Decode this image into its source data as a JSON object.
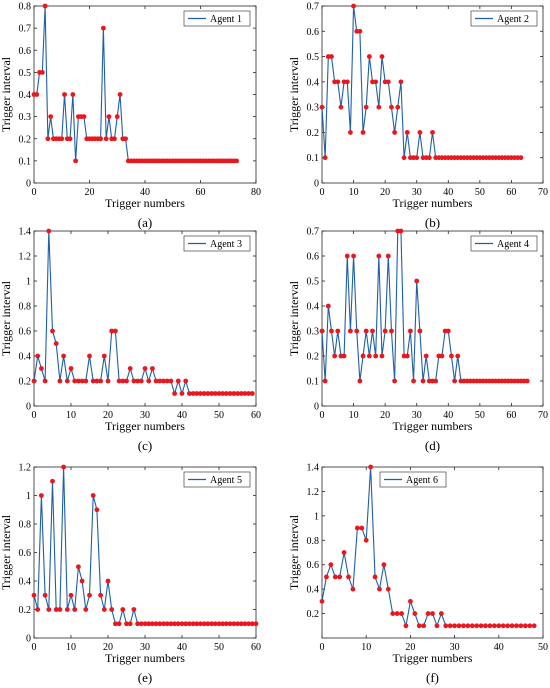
{
  "chart_data": [
    {
      "type": "line",
      "panel_label": "(a)",
      "xlabel": "Trigger numbers",
      "ylabel": "Trigger interval",
      "xlim": [
        0,
        80
      ],
      "ylim": [
        0,
        0.8
      ],
      "xticks": [
        0,
        20,
        40,
        60,
        80
      ],
      "yticks": [
        0,
        0.1,
        0.2,
        0.3,
        0.4,
        0.5,
        0.6,
        0.7,
        0.8
      ],
      "legend_position": "top-right",
      "line_color": "#1f5fa8",
      "marker_color": "#e8191e",
      "grid": false,
      "series": [
        {
          "name": "Agent 1",
          "x": [
            0,
            1,
            2,
            3,
            4,
            5,
            6,
            7,
            8,
            9,
            10,
            11,
            12,
            13,
            14,
            15,
            16,
            17,
            18,
            19,
            20,
            21,
            22,
            23,
            24,
            25,
            26,
            27,
            28,
            29,
            30,
            31,
            32,
            33,
            34,
            35,
            36,
            37,
            38,
            39,
            40,
            41,
            42,
            43,
            44,
            45,
            46,
            47,
            48,
            49,
            50,
            51,
            52,
            53,
            54,
            55,
            56,
            57,
            58,
            59,
            60,
            61,
            62,
            63,
            64,
            65,
            66,
            67,
            68,
            69,
            70,
            71,
            72,
            73
          ],
          "y": [
            0.4,
            0.4,
            0.5,
            0.5,
            0.8,
            0.2,
            0.3,
            0.2,
            0.2,
            0.2,
            0.2,
            0.4,
            0.2,
            0.2,
            0.4,
            0.1,
            0.3,
            0.3,
            0.3,
            0.2,
            0.2,
            0.2,
            0.2,
            0.2,
            0.2,
            0.7,
            0.2,
            0.3,
            0.2,
            0.2,
            0.3,
            0.4,
            0.2,
            0.2,
            0.1,
            0.1,
            0.1,
            0.1,
            0.1,
            0.1,
            0.1,
            0.1,
            0.1,
            0.1,
            0.1,
            0.1,
            0.1,
            0.1,
            0.1,
            0.1,
            0.1,
            0.1,
            0.1,
            0.1,
            0.1,
            0.1,
            0.1,
            0.1,
            0.1,
            0.1,
            0.1,
            0.1,
            0.1,
            0.1,
            0.1,
            0.1,
            0.1,
            0.1,
            0.1,
            0.1,
            0.1,
            0.1,
            0.1,
            0.1
          ]
        }
      ]
    },
    {
      "type": "line",
      "panel_label": "(b)",
      "xlabel": "Trigger numbers",
      "ylabel": "Trigger interval",
      "xlim": [
        0,
        70
      ],
      "ylim": [
        0,
        0.7
      ],
      "xticks": [
        0,
        10,
        20,
        30,
        40,
        50,
        60,
        70
      ],
      "yticks": [
        0,
        0.1,
        0.2,
        0.3,
        0.4,
        0.5,
        0.6,
        0.7
      ],
      "legend_position": "top-right",
      "line_color": "#1f5fa8",
      "marker_color": "#e8191e",
      "grid": false,
      "series": [
        {
          "name": "Agent 2",
          "x": [
            0,
            1,
            2,
            3,
            4,
            5,
            6,
            7,
            8,
            9,
            10,
            11,
            12,
            13,
            14,
            15,
            16,
            17,
            18,
            19,
            20,
            21,
            22,
            23,
            24,
            25,
            26,
            27,
            28,
            29,
            30,
            31,
            32,
            33,
            34,
            35,
            36,
            37,
            38,
            39,
            40,
            41,
            42,
            43,
            44,
            45,
            46,
            47,
            48,
            49,
            50,
            51,
            52,
            53,
            54,
            55,
            56,
            57,
            58,
            59,
            60,
            61,
            62,
            63
          ],
          "y": [
            0.3,
            0.1,
            0.5,
            0.5,
            0.4,
            0.4,
            0.3,
            0.4,
            0.4,
            0.2,
            0.7,
            0.6,
            0.6,
            0.2,
            0.3,
            0.5,
            0.4,
            0.4,
            0.3,
            0.5,
            0.4,
            0.4,
            0.3,
            0.2,
            0.3,
            0.4,
            0.1,
            0.2,
            0.1,
            0.1,
            0.1,
            0.2,
            0.1,
            0.1,
            0.1,
            0.2,
            0.1,
            0.1,
            0.1,
            0.1,
            0.1,
            0.1,
            0.1,
            0.1,
            0.1,
            0.1,
            0.1,
            0.1,
            0.1,
            0.1,
            0.1,
            0.1,
            0.1,
            0.1,
            0.1,
            0.1,
            0.1,
            0.1,
            0.1,
            0.1,
            0.1,
            0.1,
            0.1,
            0.1
          ]
        }
      ]
    },
    {
      "type": "line",
      "panel_label": "(c)",
      "xlabel": "Trigger numbers",
      "ylabel": "Trigger interval",
      "xlim": [
        0,
        60
      ],
      "ylim": [
        0,
        1.4
      ],
      "xticks": [
        0,
        10,
        20,
        30,
        40,
        50,
        60
      ],
      "yticks": [
        0,
        0.2,
        0.4,
        0.6,
        0.8,
        1,
        1.2,
        1.4
      ],
      "legend_position": "top-right",
      "line_color": "#1f5fa8",
      "marker_color": "#e8191e",
      "grid": false,
      "series": [
        {
          "name": "Agent 3",
          "x": [
            0,
            1,
            2,
            3,
            4,
            5,
            6,
            7,
            8,
            9,
            10,
            11,
            12,
            13,
            14,
            15,
            16,
            17,
            18,
            19,
            20,
            21,
            22,
            23,
            24,
            25,
            26,
            27,
            28,
            29,
            30,
            31,
            32,
            33,
            34,
            35,
            36,
            37,
            38,
            39,
            40,
            41,
            42,
            43,
            44,
            45,
            46,
            47,
            48,
            49,
            50,
            51,
            52,
            53,
            54,
            55,
            56,
            57,
            58,
            59
          ],
          "y": [
            0.2,
            0.4,
            0.3,
            0.2,
            1.4,
            0.6,
            0.5,
            0.2,
            0.4,
            0.2,
            0.3,
            0.2,
            0.2,
            0.2,
            0.2,
            0.4,
            0.2,
            0.2,
            0.2,
            0.4,
            0.2,
            0.6,
            0.6,
            0.2,
            0.2,
            0.2,
            0.3,
            0.2,
            0.2,
            0.2,
            0.3,
            0.2,
            0.3,
            0.2,
            0.2,
            0.2,
            0.2,
            0.2,
            0.1,
            0.2,
            0.1,
            0.2,
            0.1,
            0.1,
            0.1,
            0.1,
            0.1,
            0.1,
            0.1,
            0.1,
            0.1,
            0.1,
            0.1,
            0.1,
            0.1,
            0.1,
            0.1,
            0.1,
            0.1,
            0.1
          ]
        }
      ]
    },
    {
      "type": "line",
      "panel_label": "(d)",
      "xlabel": "Trigger numbers",
      "ylabel": "Trigger interval",
      "xlim": [
        0,
        70
      ],
      "ylim": [
        0,
        0.7
      ],
      "xticks": [
        0,
        10,
        20,
        30,
        40,
        50,
        60,
        70
      ],
      "yticks": [
        0,
        0.1,
        0.2,
        0.3,
        0.4,
        0.5,
        0.6,
        0.7
      ],
      "legend_position": "top-right",
      "line_color": "#1f5fa8",
      "marker_color": "#e8191e",
      "grid": false,
      "series": [
        {
          "name": "Agent 4",
          "x": [
            0,
            1,
            2,
            3,
            4,
            5,
            6,
            7,
            8,
            9,
            10,
            11,
            12,
            13,
            14,
            15,
            16,
            17,
            18,
            19,
            20,
            21,
            22,
            23,
            24,
            25,
            26,
            27,
            28,
            29,
            30,
            31,
            32,
            33,
            34,
            35,
            36,
            37,
            38,
            39,
            40,
            41,
            42,
            43,
            44,
            45,
            46,
            47,
            48,
            49,
            50,
            51,
            52,
            53,
            54,
            55,
            56,
            57,
            58,
            59,
            60,
            61,
            62,
            63,
            64,
            65
          ],
          "y": [
            0.3,
            0.1,
            0.4,
            0.3,
            0.2,
            0.3,
            0.2,
            0.2,
            0.6,
            0.3,
            0.6,
            0.3,
            0.1,
            0.2,
            0.3,
            0.2,
            0.3,
            0.2,
            0.6,
            0.2,
            0.3,
            0.6,
            0.3,
            0.1,
            0.7,
            0.7,
            0.2,
            0.2,
            0.3,
            0.1,
            0.5,
            0.3,
            0.1,
            0.2,
            0.1,
            0.1,
            0.1,
            0.2,
            0.2,
            0.3,
            0.3,
            0.2,
            0.1,
            0.2,
            0.1,
            0.1,
            0.1,
            0.1,
            0.1,
            0.1,
            0.1,
            0.1,
            0.1,
            0.1,
            0.1,
            0.1,
            0.1,
            0.1,
            0.1,
            0.1,
            0.1,
            0.1,
            0.1,
            0.1,
            0.1,
            0.1
          ]
        }
      ]
    },
    {
      "type": "line",
      "panel_label": "(e)",
      "xlabel": "Trigger numbers",
      "ylabel": "Trigger interval",
      "xlim": [
        0,
        60
      ],
      "ylim": [
        0,
        1.2
      ],
      "xticks": [
        0,
        10,
        20,
        30,
        40,
        50,
        60
      ],
      "yticks": [
        0,
        0.2,
        0.4,
        0.6,
        0.8,
        1,
        1.2
      ],
      "legend_position": "top-right",
      "line_color": "#1f5fa8",
      "marker_color": "#e8191e",
      "grid": false,
      "series": [
        {
          "name": "Agent 5",
          "x": [
            0,
            1,
            2,
            3,
            4,
            5,
            6,
            7,
            8,
            9,
            10,
            11,
            12,
            13,
            14,
            15,
            16,
            17,
            18,
            19,
            20,
            21,
            22,
            23,
            24,
            25,
            26,
            27,
            28,
            29,
            30,
            31,
            32,
            33,
            34,
            35,
            36,
            37,
            38,
            39,
            40,
            41,
            42,
            43,
            44,
            45,
            46,
            47,
            48,
            49,
            50,
            51,
            52,
            53,
            54,
            55,
            56,
            57,
            58,
            59,
            60
          ],
          "y": [
            0.3,
            0.2,
            1.0,
            0.3,
            0.2,
            1.1,
            0.2,
            0.2,
            1.2,
            0.2,
            0.3,
            0.2,
            0.5,
            0.4,
            0.2,
            0.3,
            1.0,
            0.9,
            0.3,
            0.2,
            0.4,
            0.2,
            0.1,
            0.1,
            0.2,
            0.1,
            0.1,
            0.2,
            0.1,
            0.1,
            0.1,
            0.1,
            0.1,
            0.1,
            0.1,
            0.1,
            0.1,
            0.1,
            0.1,
            0.1,
            0.1,
            0.1,
            0.1,
            0.1,
            0.1,
            0.1,
            0.1,
            0.1,
            0.1,
            0.1,
            0.1,
            0.1,
            0.1,
            0.1,
            0.1,
            0.1,
            0.1,
            0.1,
            0.1,
            0.1,
            0.1
          ]
        }
      ]
    },
    {
      "type": "line",
      "panel_label": "(f)",
      "xlabel": "Trigger numbers",
      "ylabel": "Trigger interval",
      "xlim": [
        0,
        50
      ],
      "ylim": [
        0,
        1.4
      ],
      "xticks": [
        0,
        10,
        20,
        30,
        40,
        50
      ],
      "yticks": [
        0.2,
        0.4,
        0.6,
        0.8,
        1,
        1.2,
        1.4
      ],
      "legend_position": "top-left",
      "line_color": "#1f5fa8",
      "marker_color": "#e8191e",
      "grid": false,
      "series": [
        {
          "name": "Agent 6",
          "x": [
            0,
            1,
            2,
            3,
            4,
            5,
            6,
            7,
            8,
            9,
            10,
            11,
            12,
            13,
            14,
            15,
            16,
            17,
            18,
            19,
            20,
            21,
            22,
            23,
            24,
            25,
            26,
            27,
            28,
            29,
            30,
            31,
            32,
            33,
            34,
            35,
            36,
            37,
            38,
            39,
            40,
            41,
            42,
            43,
            44,
            45,
            46,
            47,
            48
          ],
          "y": [
            0.3,
            0.5,
            0.6,
            0.5,
            0.5,
            0.7,
            0.5,
            0.4,
            0.9,
            0.9,
            0.8,
            1.4,
            0.5,
            0.4,
            0.6,
            0.4,
            0.2,
            0.2,
            0.2,
            0.1,
            0.3,
            0.2,
            0.1,
            0.1,
            0.2,
            0.2,
            0.1,
            0.2,
            0.1,
            0.1,
            0.1,
            0.1,
            0.1,
            0.1,
            0.1,
            0.1,
            0.1,
            0.1,
            0.1,
            0.1,
            0.1,
            0.1,
            0.1,
            0.1,
            0.1,
            0.1,
            0.1,
            0.1,
            0.1
          ]
        }
      ]
    }
  ]
}
